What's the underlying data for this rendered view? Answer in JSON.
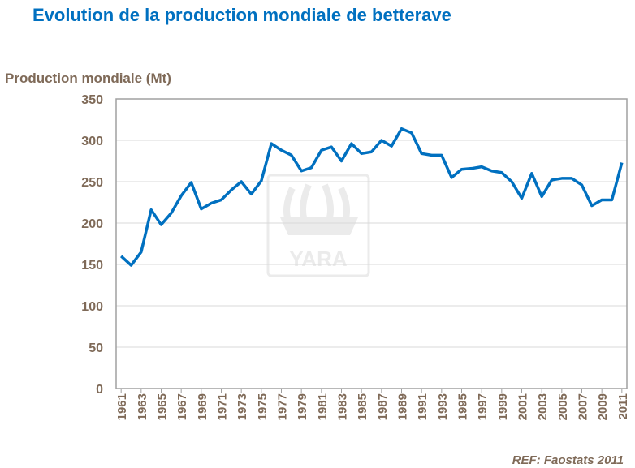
{
  "chart_data": {
    "type": "line",
    "title": "Evolution de la production mondiale de betterave",
    "y_label": "Production mondiale (Mt)",
    "source": "REF: Faostats 2011",
    "watermark": "YARA",
    "color": "#0070c0",
    "x": [
      1961,
      1962,
      1963,
      1964,
      1965,
      1966,
      1967,
      1968,
      1969,
      1970,
      1971,
      1972,
      1973,
      1974,
      1975,
      1976,
      1977,
      1978,
      1979,
      1980,
      1981,
      1982,
      1983,
      1984,
      1985,
      1986,
      1987,
      1988,
      1989,
      1990,
      1991,
      1992,
      1993,
      1994,
      1995,
      1996,
      1997,
      1998,
      1999,
      2000,
      2001,
      2002,
      2003,
      2004,
      2005,
      2006,
      2007,
      2008,
      2009,
      2010,
      2011
    ],
    "values": [
      160,
      149,
      165,
      216,
      198,
      212,
      233,
      249,
      217,
      224,
      228,
      240,
      250,
      235,
      251,
      296,
      288,
      282,
      263,
      267,
      288,
      292,
      275,
      296,
      284,
      286,
      300,
      293,
      314,
      309,
      284,
      282,
      282,
      255,
      265,
      266,
      268,
      263,
      261,
      250,
      230,
      260,
      232,
      252,
      254,
      254,
      246,
      221,
      228,
      228,
      273
    ],
    "xlim": [
      1960.5,
      2011.5
    ],
    "xticks": [
      1961,
      1963,
      1965,
      1967,
      1969,
      1971,
      1973,
      1975,
      1977,
      1979,
      1981,
      1983,
      1985,
      1987,
      1989,
      1991,
      1993,
      1995,
      1997,
      1999,
      2001,
      2003,
      2005,
      2007,
      2009,
      2011
    ],
    "ylim": [
      0,
      350
    ],
    "yticks": [
      0,
      50,
      100,
      150,
      200,
      250,
      300,
      350
    ],
    "grid": true
  }
}
